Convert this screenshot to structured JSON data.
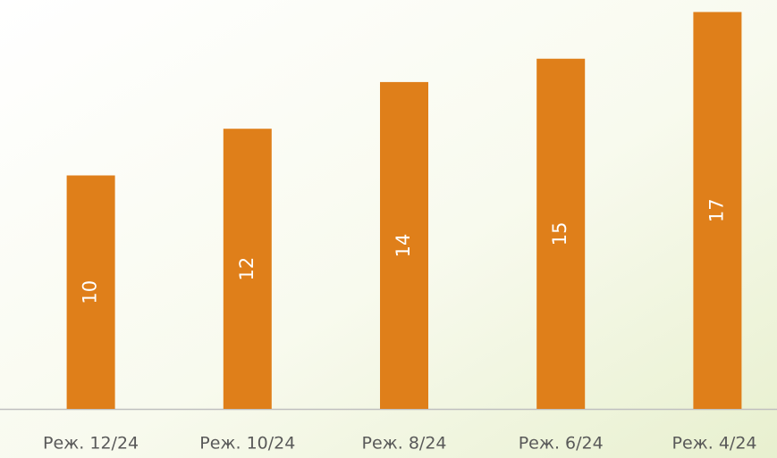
{
  "chart_data": {
    "type": "bar",
    "categories": [
      "Реж. 12/24",
      "Реж. 10/24",
      "Реж. 8/24",
      "Реж. 6/24",
      "Реж. 4/24"
    ],
    "values": [
      10,
      12,
      14,
      15,
      17
    ],
    "color": "#df7f1a",
    "ylim": [
      0,
      17.4
    ]
  }
}
